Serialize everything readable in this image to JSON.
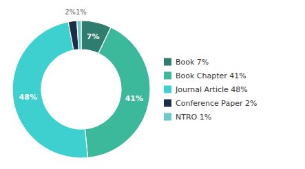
{
  "chart_data": {
    "type": "pie",
    "categories": [
      "Book 7%",
      "Book Chapter 41%",
      "Journal Article 48%",
      "Conference Paper 2%",
      "NTRO 1%"
    ],
    "values": [
      7,
      41,
      48,
      2,
      1
    ],
    "value_labels": [
      "7%",
      "41%",
      "48%",
      null,
      null
    ],
    "data_labels": true,
    "colors": [
      "#2e7d6e",
      "#3cb89a",
      "#3ecfcf",
      "#1c2e4a",
      "#6ec8c8"
    ],
    "annotations": [
      {
        "text": "2%1%"
      }
    ],
    "legend": "right"
  }
}
